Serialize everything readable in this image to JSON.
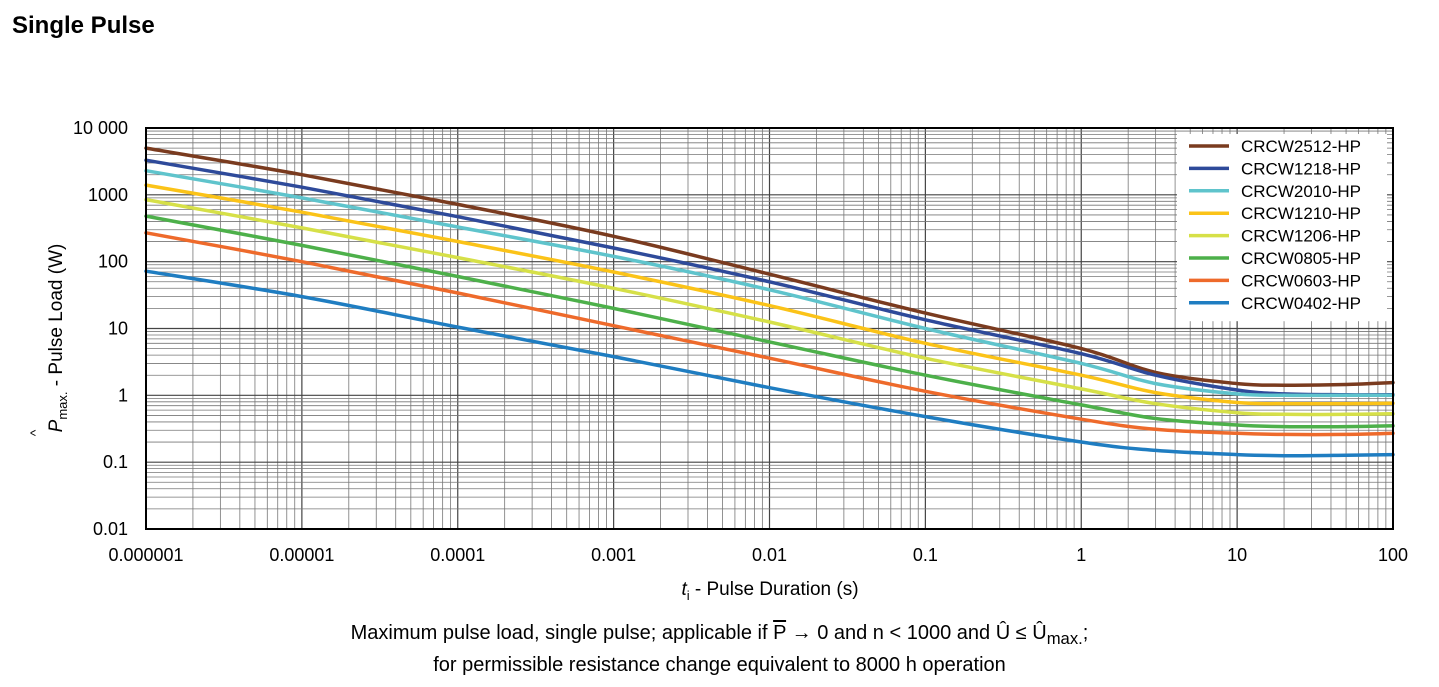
{
  "section_title": "Single Pulse",
  "caption": {
    "line1_prefix": "Maximum pulse load, single pulse; applicable if ",
    "p_symbol": "P",
    "line1_mid1": " → 0 and n < 1000 and ",
    "u_symbol": "Û",
    "line1_mid2": " ≤ ",
    "umax_symbol": "Û",
    "umax_sub": "max.",
    "line1_end": ";",
    "line2": "for permissible resistance change equivalent to 8000 h operation"
  },
  "chart_data": {
    "type": "line",
    "xscale": "log",
    "yscale": "log",
    "xlim": [
      1e-06,
      100
    ],
    "ylim": [
      0.01,
      10000
    ],
    "grid": true,
    "legend_position": "top-right",
    "xlabel": {
      "var": "t",
      "sub": "i",
      "text": " - Pulse Duration (s)"
    },
    "ylabel": {
      "var": "P",
      "hat": "^",
      "sub": "max.",
      "text": " - Pulse Load (W)"
    },
    "xticks": [
      {
        "value": 1e-06,
        "label": "0.000001"
      },
      {
        "value": 1e-05,
        "label": "0.00001"
      },
      {
        "value": 0.0001,
        "label": "0.0001"
      },
      {
        "value": 0.001,
        "label": "0.001"
      },
      {
        "value": 0.01,
        "label": "0.01"
      },
      {
        "value": 0.1,
        "label": "0.1"
      },
      {
        "value": 1,
        "label": "1"
      },
      {
        "value": 10,
        "label": "10"
      },
      {
        "value": 100,
        "label": "100"
      }
    ],
    "yticks": [
      {
        "value": 0.01,
        "label": "0.01"
      },
      {
        "value": 0.1,
        "label": "0.1"
      },
      {
        "value": 1,
        "label": "1"
      },
      {
        "value": 10,
        "label": "10"
      },
      {
        "value": 100,
        "label": "100"
      },
      {
        "value": 1000,
        "label": "1000"
      },
      {
        "value": 10000,
        "label": "10 000"
      }
    ],
    "series": [
      {
        "name": "CRCW2512-HP",
        "color": "#7a3b1f",
        "points": [
          [
            1e-06,
            5000
          ],
          [
            1e-05,
            2000
          ],
          [
            0.0001,
            720
          ],
          [
            0.001,
            240
          ],
          [
            0.01,
            65
          ],
          [
            0.1,
            17
          ],
          [
            1,
            5
          ],
          [
            3,
            2.2
          ],
          [
            10,
            1.5
          ],
          [
            20,
            1.42
          ],
          [
            50,
            1.45
          ],
          [
            100,
            1.55
          ]
        ]
      },
      {
        "name": "CRCW1218-HP",
        "color": "#2e4a9a",
        "points": [
          [
            1e-06,
            3300
          ],
          [
            1e-05,
            1300
          ],
          [
            0.0001,
            470
          ],
          [
            0.001,
            160
          ],
          [
            0.01,
            50
          ],
          [
            0.1,
            13.5
          ],
          [
            1,
            4.2
          ],
          [
            3,
            2.0
          ],
          [
            10,
            1.2
          ],
          [
            20,
            1.05
          ],
          [
            50,
            1.02
          ],
          [
            100,
            1.02
          ]
        ]
      },
      {
        "name": "CRCW2010-HP",
        "color": "#5fc4cc",
        "points": [
          [
            1e-06,
            2300
          ],
          [
            1e-05,
            900
          ],
          [
            0.0001,
            330
          ],
          [
            0.001,
            120
          ],
          [
            0.01,
            38
          ],
          [
            0.1,
            10
          ],
          [
            1,
            3
          ],
          [
            3,
            1.5
          ],
          [
            10,
            1.05
          ],
          [
            20,
            1.0
          ],
          [
            50,
            1.0
          ],
          [
            100,
            1.0
          ]
        ]
      },
      {
        "name": "CRCW1210-HP",
        "color": "#fbc318",
        "points": [
          [
            1e-06,
            1400
          ],
          [
            1e-05,
            550
          ],
          [
            0.0001,
            200
          ],
          [
            0.001,
            70
          ],
          [
            0.01,
            22
          ],
          [
            0.1,
            6
          ],
          [
            1,
            2
          ],
          [
            3,
            1.1
          ],
          [
            10,
            0.78
          ],
          [
            20,
            0.75
          ],
          [
            50,
            0.75
          ],
          [
            100,
            0.76
          ]
        ]
      },
      {
        "name": "CRCW1206-HP",
        "color": "#d6e048",
        "points": [
          [
            1e-06,
            850
          ],
          [
            1e-05,
            320
          ],
          [
            0.0001,
            115
          ],
          [
            0.001,
            40
          ],
          [
            0.01,
            12.5
          ],
          [
            0.1,
            3.6
          ],
          [
            1,
            1.25
          ],
          [
            3,
            0.75
          ],
          [
            10,
            0.55
          ],
          [
            20,
            0.52
          ],
          [
            50,
            0.52
          ],
          [
            100,
            0.53
          ]
        ]
      },
      {
        "name": "CRCW0805-HP",
        "color": "#4db04a",
        "points": [
          [
            1e-06,
            480
          ],
          [
            1e-05,
            175
          ],
          [
            0.0001,
            60
          ],
          [
            0.001,
            20
          ],
          [
            0.01,
            6.3
          ],
          [
            0.1,
            2
          ],
          [
            1,
            0.72
          ],
          [
            3,
            0.45
          ],
          [
            10,
            0.36
          ],
          [
            20,
            0.34
          ],
          [
            50,
            0.34
          ],
          [
            100,
            0.35
          ]
        ]
      },
      {
        "name": "CRCW0603-HP",
        "color": "#ee6a2b",
        "points": [
          [
            1e-06,
            270
          ],
          [
            1e-05,
            100
          ],
          [
            0.0001,
            34
          ],
          [
            0.001,
            11
          ],
          [
            0.01,
            3.6
          ],
          [
            0.1,
            1.15
          ],
          [
            1,
            0.44
          ],
          [
            3,
            0.31
          ],
          [
            10,
            0.27
          ],
          [
            20,
            0.26
          ],
          [
            50,
            0.26
          ],
          [
            100,
            0.27
          ]
        ]
      },
      {
        "name": "CRCW0402-HP",
        "color": "#1f7dc1",
        "points": [
          [
            1e-06,
            72
          ],
          [
            1e-05,
            30
          ],
          [
            0.0001,
            10.5
          ],
          [
            0.001,
            3.8
          ],
          [
            0.01,
            1.3
          ],
          [
            0.1,
            0.48
          ],
          [
            1,
            0.2
          ],
          [
            3,
            0.15
          ],
          [
            10,
            0.13
          ],
          [
            20,
            0.125
          ],
          [
            50,
            0.127
          ],
          [
            100,
            0.13
          ]
        ]
      }
    ]
  }
}
